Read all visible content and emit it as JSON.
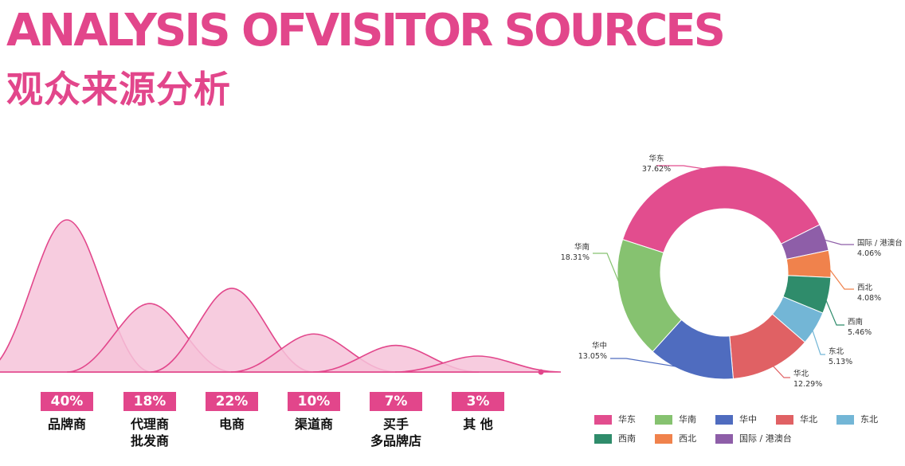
{
  "title_en": "ANALYSIS OFVISITOR SOURCES",
  "title_cn": "观众来源分析",
  "chart_data": [
    {
      "type": "area",
      "categories": [
        {
          "percent_label": "40%",
          "label_lines": [
            "品牌商"
          ]
        },
        {
          "percent_label": "18%",
          "label_lines": [
            "代理商",
            "批发商"
          ]
        },
        {
          "percent_label": "22%",
          "label_lines": [
            "电商"
          ]
        },
        {
          "percent_label": "10%",
          "label_lines": [
            "渠道商"
          ]
        },
        {
          "percent_label": "7%",
          "label_lines": [
            "买手",
            "多品牌店"
          ]
        },
        {
          "percent_label": "3%",
          "label_lines": [
            "其 他"
          ]
        }
      ],
      "values": [
        40,
        18,
        22,
        10,
        7,
        3
      ],
      "color": "#e2468b",
      "fill_color": "#f6c3d9"
    },
    {
      "type": "pie",
      "donut": true,
      "slices": [
        {
          "name": "华东",
          "value": 37.62,
          "value_label": "37.62%",
          "color": "#e24d8e"
        },
        {
          "name": "国际 / 港澳台",
          "value": 4.06,
          "value_label": "4.06%",
          "color": "#8e5ea8"
        },
        {
          "name": "西北",
          "value": 4.08,
          "value_label": "4.08%",
          "color": "#f0824c"
        },
        {
          "name": "西南",
          "value": 5.46,
          "value_label": "5.46%",
          "color": "#2f8c6b"
        },
        {
          "name": "东北",
          "value": 5.13,
          "value_label": "5.13%",
          "color": "#73b6d6"
        },
        {
          "name": "华北",
          "value": 12.29,
          "value_label": "12.29%",
          "color": "#e06164"
        },
        {
          "name": "华中",
          "value": 13.05,
          "value_label": "13.05%",
          "color": "#4f6cbf"
        },
        {
          "name": "华南",
          "value": 18.31,
          "value_label": "18.31%",
          "color": "#86c270"
        }
      ],
      "legend": [
        "华东",
        "华南",
        "华中",
        "华北",
        "东北",
        "西南",
        "西北",
        "国际 / 港澳台"
      ],
      "legend_position": "bottom"
    }
  ]
}
